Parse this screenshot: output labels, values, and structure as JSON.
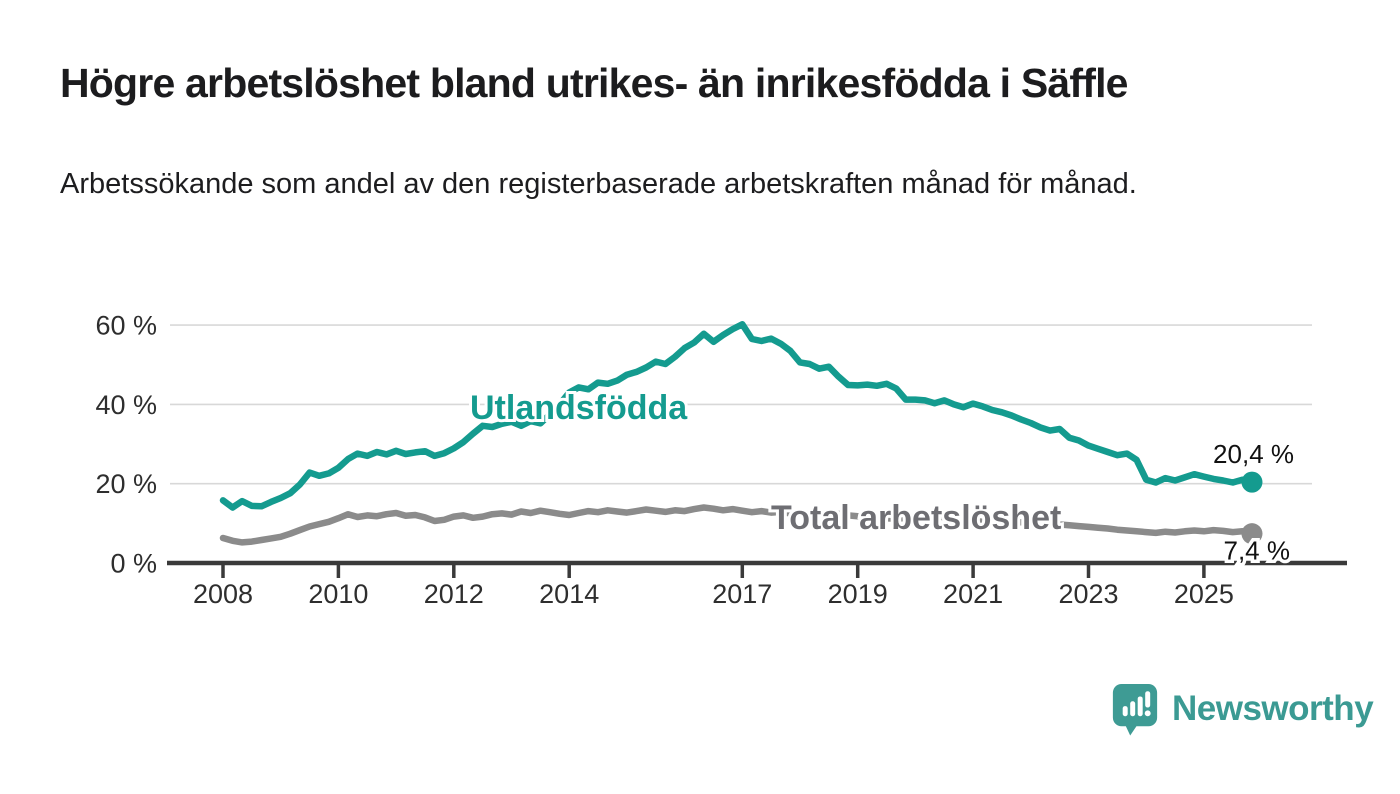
{
  "header": {
    "title": "Högre arbetslöshet bland utrikes- än inrikesfödda i Säffle",
    "subtitle": "Arbetssökande som andel av den registerbaserade arbetskraften månad för månad."
  },
  "chart_data": {
    "type": "line",
    "unit": "%",
    "x_start_year": 2008,
    "points_per_year": 6,
    "x_axis": {
      "tick_years": [
        2008,
        2010,
        2012,
        2014,
        2017,
        2019,
        2021,
        2023,
        2025
      ]
    },
    "y_axis": {
      "ticks": [
        0,
        20,
        40,
        60
      ],
      "tick_suffix": " %",
      "range": [
        0,
        63
      ]
    },
    "grid": "horizontal",
    "legend_position": "inline-labels",
    "series": [
      {
        "name": "Utlandsfödda",
        "color": "#149b8f",
        "label_color": "#149b8f",
        "end_label": "20,4 %",
        "end_value": 20.4,
        "values": [
          15.8,
          14.0,
          15.6,
          14.4,
          14.3,
          15.4,
          16.4,
          17.6,
          19.8,
          22.8,
          22.0,
          22.6,
          24.0,
          26.2,
          27.6,
          27.0,
          28.0,
          27.4,
          28.3,
          27.5,
          27.9,
          28.2,
          27.0,
          27.7,
          28.9,
          30.5,
          32.6,
          34.6,
          34.3,
          35.1,
          35.6,
          34.6,
          35.8,
          35.2,
          37.5,
          40.0,
          43.0,
          44.3,
          43.8,
          45.5,
          45.2,
          46.0,
          47.5,
          48.2,
          49.3,
          50.8,
          50.2,
          52.0,
          54.2,
          55.6,
          57.8,
          55.8,
          57.5,
          59.0,
          60.2,
          56.5,
          56.0,
          56.6,
          55.3,
          53.5,
          50.6,
          50.2,
          49.0,
          49.5,
          47.0,
          44.9,
          44.8,
          45.0,
          44.7,
          45.2,
          44.0,
          41.2,
          41.2,
          41.0,
          40.3,
          41.0,
          40.0,
          39.3,
          40.2,
          39.5,
          38.6,
          38.0,
          37.2,
          36.2,
          35.3,
          34.2,
          33.4,
          33.8,
          31.6,
          30.9,
          29.6,
          28.8,
          28.0,
          27.2,
          27.6,
          26.0,
          21.0,
          20.3,
          21.4,
          20.8,
          21.6,
          22.4,
          21.8,
          21.2,
          20.8,
          20.3,
          21.0,
          20.4
        ]
      },
      {
        "name": "Total arbetslöshet",
        "color": "#8b8b8b",
        "label_color": "#6e6e73",
        "end_label": "7,4 %",
        "end_value": 7.4,
        "values": [
          6.3,
          5.6,
          5.2,
          5.4,
          5.8,
          6.2,
          6.6,
          7.4,
          8.3,
          9.2,
          9.8,
          10.4,
          11.3,
          12.3,
          11.6,
          12.0,
          11.8,
          12.3,
          12.6,
          11.9,
          12.1,
          11.5,
          10.6,
          10.9,
          11.7,
          12.0,
          11.4,
          11.7,
          12.3,
          12.5,
          12.2,
          13.0,
          12.6,
          13.2,
          12.8,
          12.4,
          12.1,
          12.6,
          13.1,
          12.8,
          13.3,
          13.0,
          12.7,
          13.1,
          13.5,
          13.2,
          12.9,
          13.3,
          13.1,
          13.6,
          14.0,
          13.7,
          13.3,
          13.6,
          13.2,
          12.8,
          13.1,
          12.7,
          12.9,
          12.5,
          12.8,
          12.4,
          12.6,
          12.2,
          12.4,
          12.0,
          11.8,
          11.5,
          11.7,
          11.3,
          11.1,
          11.4,
          11.2,
          11.6,
          11.9,
          11.5,
          11.2,
          10.9,
          10.7,
          10.4,
          10.6,
          10.2,
          10.0,
          10.3,
          10.1,
          9.8,
          10.0,
          9.7,
          9.5,
          9.3,
          9.1,
          8.9,
          8.7,
          8.4,
          8.2,
          8.0,
          7.8,
          7.6,
          7.9,
          7.7,
          8.0,
          8.2,
          8.0,
          8.3,
          8.1,
          7.8,
          8.0,
          7.4
        ]
      }
    ],
    "title": "Högre arbetslöshet bland utrikes- än inrikesfödda i Säffle",
    "xlabel": "",
    "ylabel": ""
  },
  "footer": {
    "brand": "Newsworthy"
  },
  "colors": {
    "accent_teal": "#149b8f",
    "line_gray": "#8b8b8b",
    "grid": "#d8d8d8",
    "axis": "#3a3a3a",
    "text": "#1d1d1f",
    "brand_teal": "#3b9a93"
  }
}
